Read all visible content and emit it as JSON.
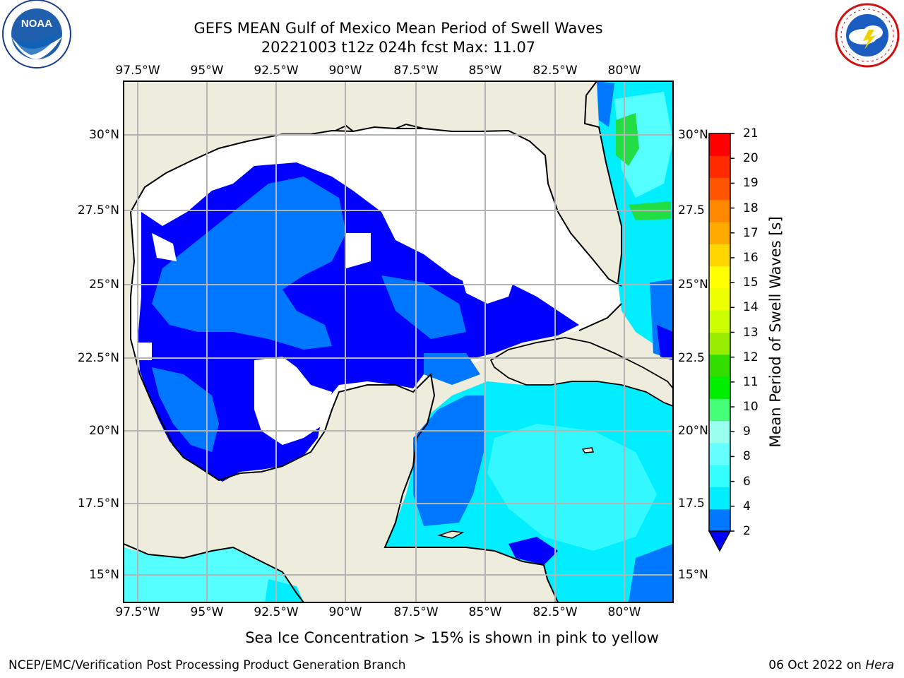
{
  "header": {
    "title_line1": "GEFS MEAN Gulf of Mexico Mean Period of Swell Waves",
    "title_line2": "20221003 t12z 024h fcst   Max: 11.07"
  },
  "logos": {
    "left": {
      "name": "noaa-logo",
      "text": "NOAA",
      "ring_text": "NATIONAL OCEANIC AND ATMOSPHERIC ADMINISTRATION · U.S. DEPARTMENT OF COMMERCE"
    },
    "right": {
      "name": "national-weather-service-logo",
      "ring_text": "NATIONAL WEATHER SERVICE"
    }
  },
  "map": {
    "lon_labels": [
      "97.5°W",
      "95°W",
      "92.5°W",
      "90°W",
      "87.5°W",
      "85°W",
      "82.5°W",
      "80°W"
    ],
    "lat_labels_left": [
      "30°N",
      "27.5°N",
      "25°N",
      "22.5°N",
      "20°N",
      "17.5°N",
      "15°N"
    ],
    "lat_labels_right": [
      "30°N",
      "27.5",
      "25°N",
      "22.5",
      "20°N",
      "17.5",
      "15°N"
    ],
    "colors": {
      "land": "#eeeddd",
      "grid": "#b4b4b4",
      "blue": "#0000ff",
      "midblue": "#0077ff",
      "cyan": "#00eeff",
      "lightcyan": "#55ffff",
      "green": "#22dd44"
    }
  },
  "colorbar": {
    "title": "Mean Period of Swell Waves [s]",
    "ticks": [
      "2",
      "4",
      "6",
      "8",
      "9",
      "10",
      "11",
      "12",
      "13",
      "14",
      "15",
      "16",
      "17",
      "18",
      "19",
      "20",
      "21"
    ],
    "colors": [
      "#0077ff",
      "#00eeff",
      "#33ffff",
      "#66ffff",
      "#99ffee",
      "#44ff77",
      "#00ee00",
      "#33dd00",
      "#99ee00",
      "#ccff00",
      "#eeff00",
      "#ffff00",
      "#ffd700",
      "#ffaa00",
      "#ff8800",
      "#ff5500",
      "#ff2a00",
      "#ff0000"
    ],
    "extend_color": "#0000ff"
  },
  "caption": "Sea Ice Concentration > 15% is shown in pink to yellow",
  "footer": {
    "left": "NCEP/EMC/Verification Post Processing Product Generation Branch",
    "right_date": "06 Oct 2022 on ",
    "right_host": "Hera"
  }
}
